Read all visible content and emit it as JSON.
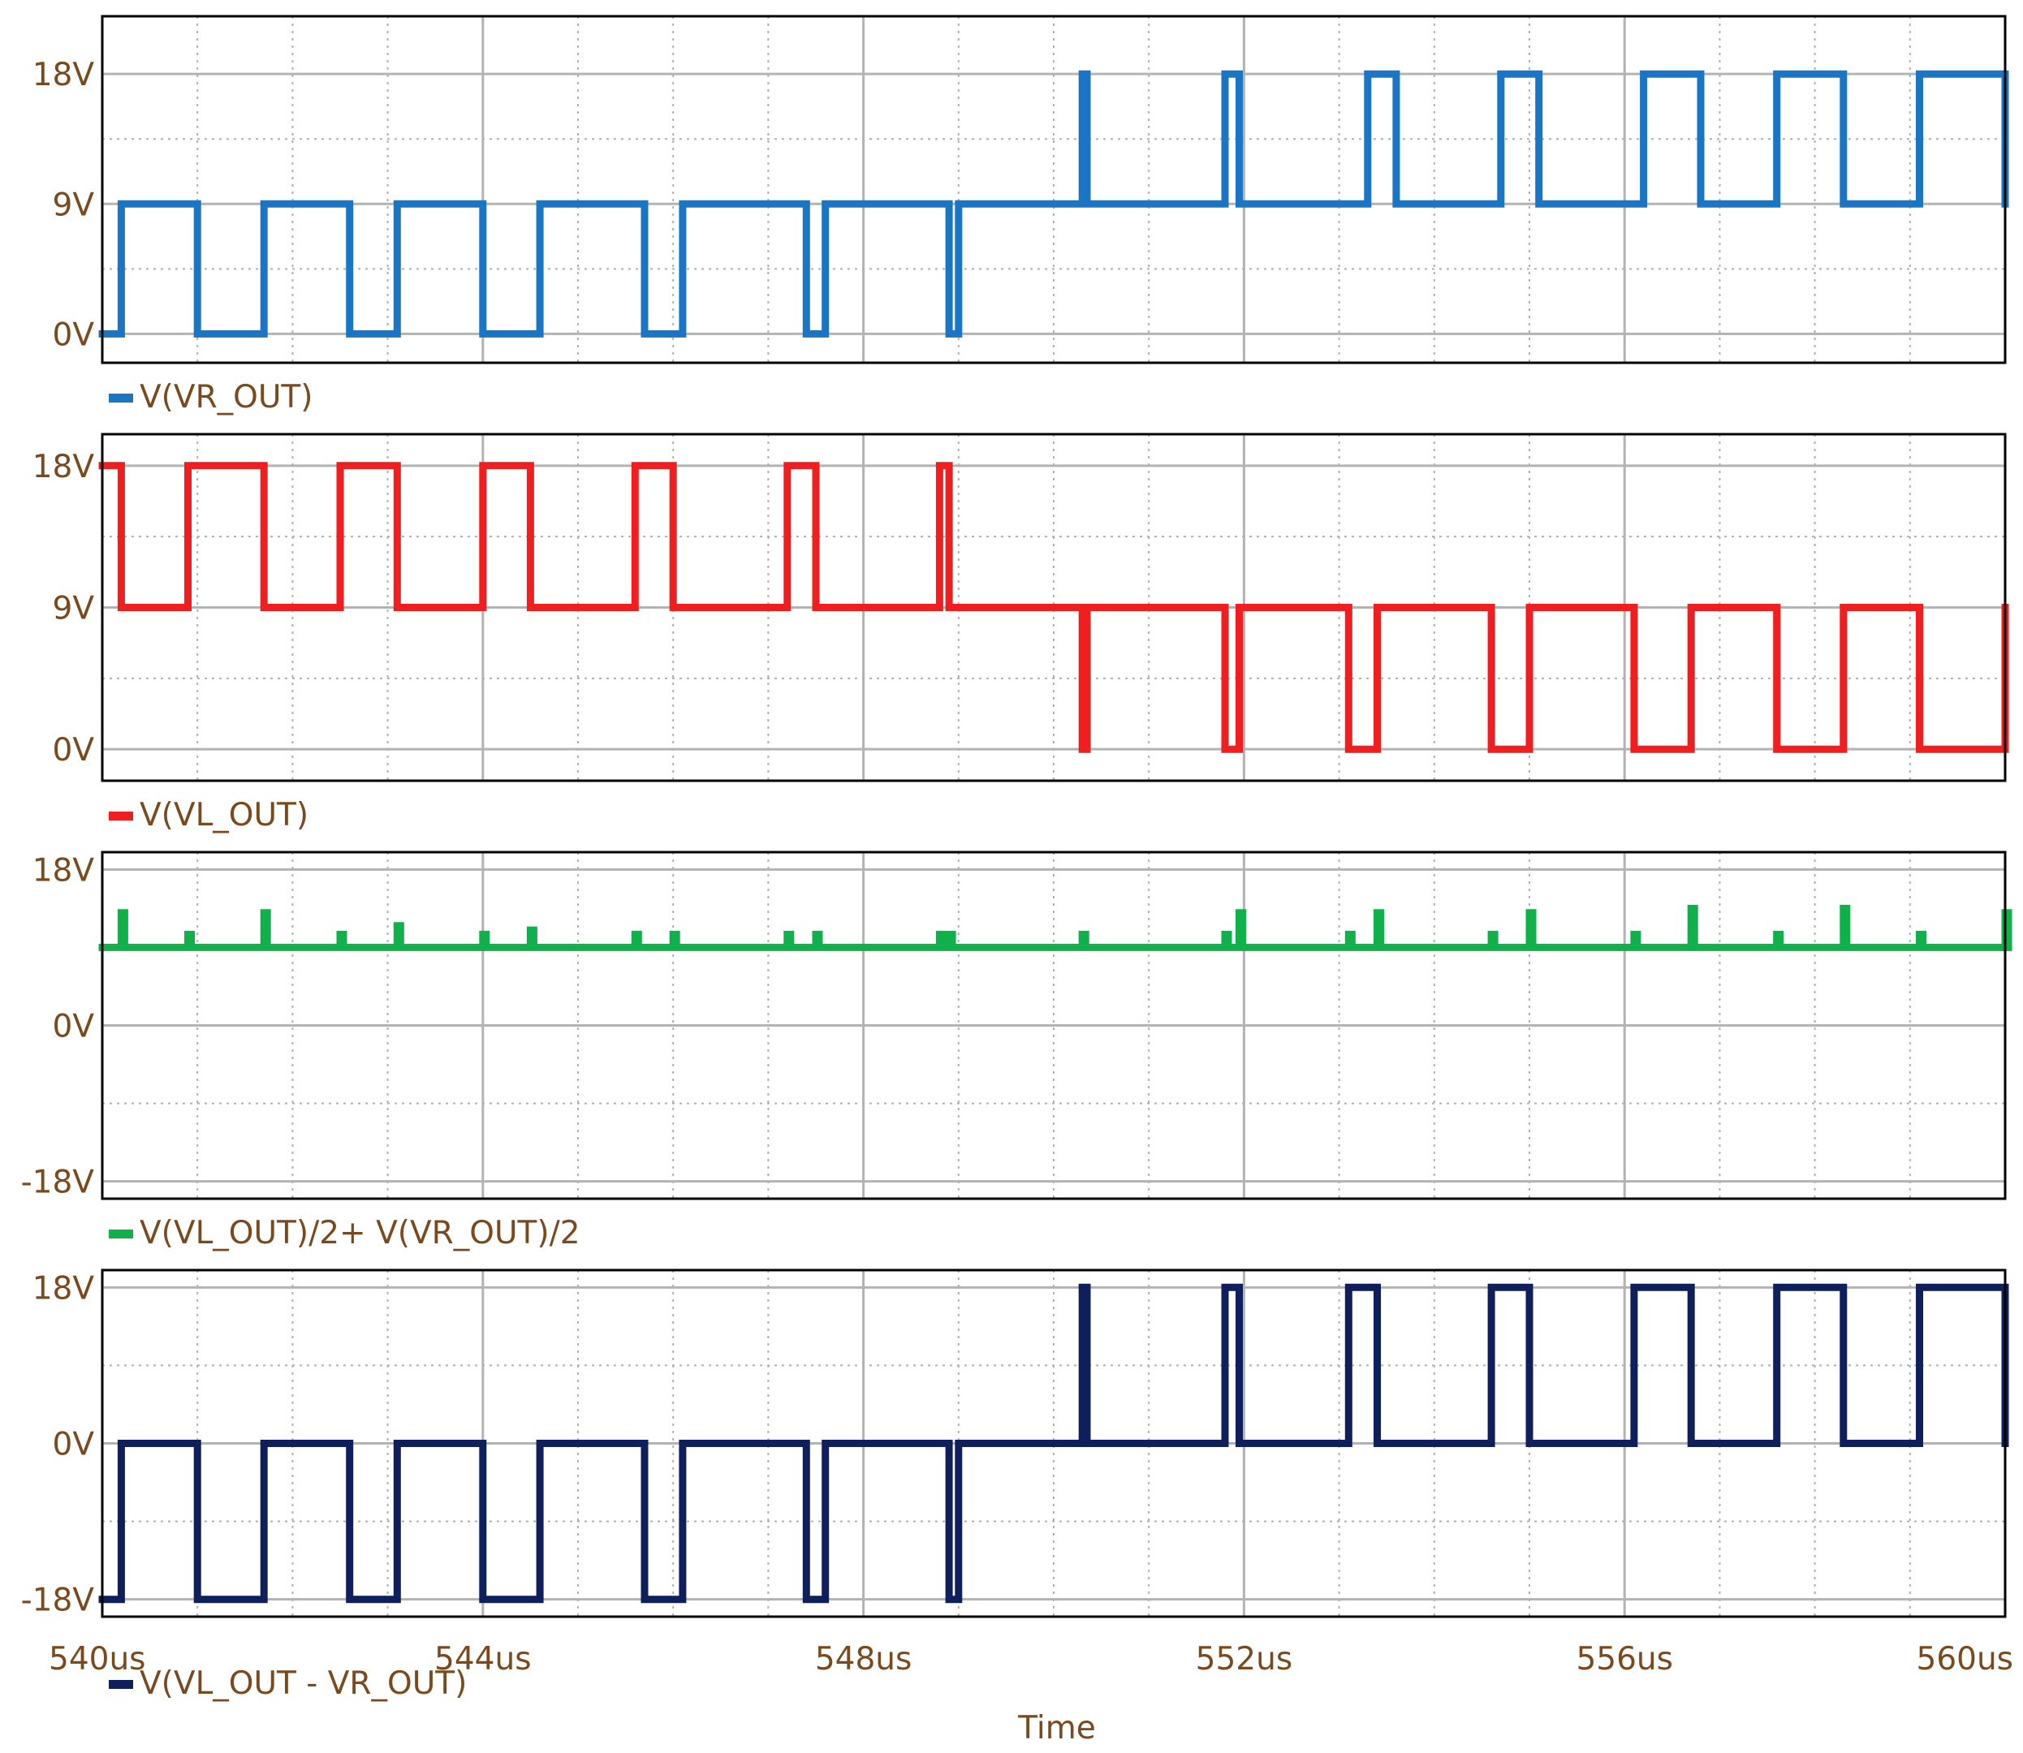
{
  "chart_data": {
    "type": "line",
    "xlabel": "Time",
    "x_ticks": [
      "540us",
      "544us",
      "548us",
      "552us",
      "556us",
      "560us"
    ],
    "xlim": [
      540,
      560
    ],
    "x_unit": "us",
    "grid": true,
    "legend_placement": "below-each-panel",
    "panels": [
      {
        "name": "V(VR_OUT)",
        "color": "#1a75c4",
        "ylim": [
          -2,
          22
        ],
        "y_ticks": [
          {
            "value": 18,
            "label": "18V"
          },
          {
            "value": 9,
            "label": "9V"
          },
          {
            "value": 0,
            "label": "0V"
          }
        ],
        "points": [
          [
            540.0,
            0
          ],
          [
            540.2,
            0
          ],
          [
            540.2,
            9
          ],
          [
            541.0,
            9
          ],
          [
            541.0,
            0
          ],
          [
            541.7,
            0
          ],
          [
            541.7,
            9
          ],
          [
            542.6,
            9
          ],
          [
            542.6,
            0
          ],
          [
            543.1,
            0
          ],
          [
            543.1,
            9
          ],
          [
            544.0,
            9
          ],
          [
            544.0,
            0
          ],
          [
            544.6,
            0
          ],
          [
            544.6,
            9
          ],
          [
            545.7,
            9
          ],
          [
            545.7,
            0
          ],
          [
            546.1,
            0
          ],
          [
            546.1,
            9
          ],
          [
            547.4,
            9
          ],
          [
            547.4,
            0
          ],
          [
            547.6,
            0
          ],
          [
            547.6,
            9
          ],
          [
            548.9,
            9
          ],
          [
            548.9,
            0
          ],
          [
            549.0,
            0
          ],
          [
            549.0,
            9
          ],
          [
            550.3,
            9
          ],
          [
            550.3,
            18
          ],
          [
            550.35,
            18
          ],
          [
            550.35,
            9
          ],
          [
            551.8,
            9
          ],
          [
            551.8,
            18
          ],
          [
            551.95,
            18
          ],
          [
            551.95,
            9
          ],
          [
            553.3,
            9
          ],
          [
            553.3,
            18
          ],
          [
            553.6,
            18
          ],
          [
            553.6,
            9
          ],
          [
            554.7,
            9
          ],
          [
            554.7,
            18
          ],
          [
            555.1,
            18
          ],
          [
            555.1,
            9
          ],
          [
            556.2,
            9
          ],
          [
            556.2,
            18
          ],
          [
            556.8,
            18
          ],
          [
            556.8,
            9
          ],
          [
            557.6,
            9
          ],
          [
            557.6,
            18
          ],
          [
            558.3,
            18
          ],
          [
            558.3,
            9
          ],
          [
            559.1,
            9
          ],
          [
            559.1,
            18
          ],
          [
            560.0,
            18
          ],
          [
            560.0,
            9
          ]
        ]
      },
      {
        "name": "V(VL_OUT)",
        "color": "#f01e1e",
        "ylim": [
          -2,
          20
        ],
        "y_ticks": [
          {
            "value": 18,
            "label": "18V"
          },
          {
            "value": 9,
            "label": "9V"
          },
          {
            "value": 0,
            "label": "0V"
          }
        ],
        "points": [
          [
            540.0,
            18
          ],
          [
            540.2,
            18
          ],
          [
            540.2,
            9
          ],
          [
            540.9,
            9
          ],
          [
            540.9,
            18
          ],
          [
            541.7,
            18
          ],
          [
            541.7,
            9
          ],
          [
            542.5,
            9
          ],
          [
            542.5,
            18
          ],
          [
            543.1,
            18
          ],
          [
            543.1,
            9
          ],
          [
            544.0,
            9
          ],
          [
            544.0,
            18
          ],
          [
            544.5,
            18
          ],
          [
            544.5,
            9
          ],
          [
            545.6,
            9
          ],
          [
            545.6,
            18
          ],
          [
            546.0,
            18
          ],
          [
            546.0,
            9
          ],
          [
            547.2,
            9
          ],
          [
            547.2,
            18
          ],
          [
            547.5,
            18
          ],
          [
            547.5,
            9
          ],
          [
            548.8,
            9
          ],
          [
            548.8,
            18
          ],
          [
            548.9,
            18
          ],
          [
            548.9,
            9
          ],
          [
            550.3,
            9
          ],
          [
            550.3,
            0
          ],
          [
            550.35,
            0
          ],
          [
            550.35,
            9
          ],
          [
            551.8,
            9
          ],
          [
            551.8,
            0
          ],
          [
            551.95,
            0
          ],
          [
            551.95,
            9
          ],
          [
            553.1,
            9
          ],
          [
            553.1,
            0
          ],
          [
            553.4,
            0
          ],
          [
            553.4,
            9
          ],
          [
            554.6,
            9
          ],
          [
            554.6,
            0
          ],
          [
            555.0,
            0
          ],
          [
            555.0,
            9
          ],
          [
            556.1,
            9
          ],
          [
            556.1,
            0
          ],
          [
            556.7,
            0
          ],
          [
            556.7,
            9
          ],
          [
            557.6,
            9
          ],
          [
            557.6,
            0
          ],
          [
            558.3,
            0
          ],
          [
            558.3,
            9
          ],
          [
            559.1,
            9
          ],
          [
            559.1,
            0
          ],
          [
            560.0,
            0
          ],
          [
            560.0,
            9
          ]
        ]
      },
      {
        "name": "V(VL_OUT)/2+ V(VR_OUT)/2",
        "color": "#10b04a",
        "ylim": [
          -20,
          20
        ],
        "y_ticks": [
          {
            "value": 18,
            "label": "18V"
          },
          {
            "value": 0,
            "label": "0V"
          },
          {
            "value": -18,
            "label": "-18V"
          }
        ],
        "baseline": 9,
        "spikes": [
          [
            540.2,
            13
          ],
          [
            540.9,
            10.5
          ],
          [
            541.7,
            13
          ],
          [
            542.5,
            10.5
          ],
          [
            543.1,
            11.5
          ],
          [
            544.0,
            10.5
          ],
          [
            544.5,
            11
          ],
          [
            545.6,
            10.5
          ],
          [
            546.0,
            10.5
          ],
          [
            547.2,
            10.5
          ],
          [
            547.5,
            10.5
          ],
          [
            548.8,
            10.5
          ],
          [
            548.9,
            10.5
          ],
          [
            550.3,
            10.5
          ],
          [
            551.8,
            10.5
          ],
          [
            551.95,
            13
          ],
          [
            553.1,
            10.5
          ],
          [
            553.4,
            13
          ],
          [
            554.6,
            10.5
          ],
          [
            555.0,
            13
          ],
          [
            556.1,
            10.5
          ],
          [
            556.7,
            13.5
          ],
          [
            557.6,
            10.5
          ],
          [
            558.3,
            13.5
          ],
          [
            559.1,
            10.5
          ],
          [
            560.0,
            13
          ]
        ]
      },
      {
        "name": "V(VL_OUT  - VR_OUT)",
        "color": "#0f1f5c",
        "ylim": [
          -20,
          20
        ],
        "y_ticks": [
          {
            "value": 18,
            "label": "18V"
          },
          {
            "value": 0,
            "label": "0V"
          },
          {
            "value": -18,
            "label": "-18V"
          }
        ],
        "points": [
          [
            540.0,
            -18
          ],
          [
            540.2,
            -18
          ],
          [
            540.2,
            0
          ],
          [
            541.0,
            0
          ],
          [
            541.0,
            -18
          ],
          [
            541.7,
            -18
          ],
          [
            541.7,
            0
          ],
          [
            542.6,
            0
          ],
          [
            542.6,
            -18
          ],
          [
            543.1,
            -18
          ],
          [
            543.1,
            0
          ],
          [
            544.0,
            0
          ],
          [
            544.0,
            -18
          ],
          [
            544.6,
            -18
          ],
          [
            544.6,
            0
          ],
          [
            545.7,
            0
          ],
          [
            545.7,
            -18
          ],
          [
            546.1,
            -18
          ],
          [
            546.1,
            0
          ],
          [
            547.4,
            0
          ],
          [
            547.4,
            -18
          ],
          [
            547.6,
            -18
          ],
          [
            547.6,
            0
          ],
          [
            548.9,
            0
          ],
          [
            548.9,
            -18
          ],
          [
            549.0,
            -18
          ],
          [
            549.0,
            0
          ],
          [
            550.3,
            0
          ],
          [
            550.3,
            18
          ],
          [
            550.35,
            18
          ],
          [
            550.35,
            0
          ],
          [
            551.8,
            0
          ],
          [
            551.8,
            18
          ],
          [
            551.95,
            18
          ],
          [
            551.95,
            0
          ],
          [
            553.1,
            0
          ],
          [
            553.1,
            18
          ],
          [
            553.4,
            18
          ],
          [
            553.4,
            0
          ],
          [
            554.6,
            0
          ],
          [
            554.6,
            18
          ],
          [
            555.0,
            18
          ],
          [
            555.0,
            0
          ],
          [
            556.1,
            0
          ],
          [
            556.1,
            18
          ],
          [
            556.7,
            18
          ],
          [
            556.7,
            0
          ],
          [
            557.6,
            0
          ],
          [
            557.6,
            18
          ],
          [
            558.3,
            18
          ],
          [
            558.3,
            0
          ],
          [
            559.1,
            0
          ],
          [
            559.1,
            18
          ],
          [
            560.0,
            18
          ],
          [
            560.0,
            0
          ]
        ]
      }
    ]
  }
}
